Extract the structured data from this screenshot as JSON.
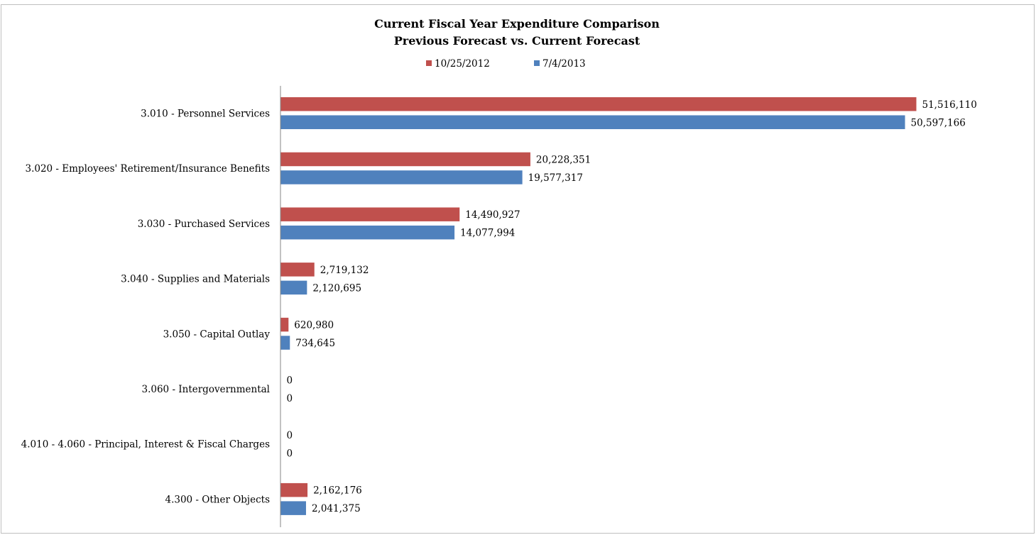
{
  "chart_data": {
    "type": "bar",
    "orientation": "horizontal",
    "title": "Current Fiscal Year Expenditure Comparison",
    "subtitle": "Previous Forecast vs. Current Forecast",
    "legend_position": "top",
    "grid": false,
    "xlim": [
      0,
      55000000
    ],
    "categories": [
      "3.010 - Personnel Services",
      "3.020 - Employees' Retirement/Insurance Benefits",
      "3.030 - Purchased Services",
      "3.040 - Supplies and Materials",
      "3.050 - Capital Outlay",
      "3.060 - Intergovernmental",
      "4.010 - 4.060 - Principal, Interest & Fiscal Charges",
      "4.300 - Other Objects"
    ],
    "series": [
      {
        "name": "10/25/2012",
        "color": "#c0504d",
        "values": [
          51516110,
          20228351,
          14490927,
          2719132,
          620980,
          0,
          0,
          2162176
        ],
        "labels": [
          "51,516,110",
          "20,228,351",
          "14,490,927",
          "2,719,132",
          "620,980",
          "0",
          "0",
          "2,162,176"
        ]
      },
      {
        "name": "7/4/2013",
        "color": "#4f81bd",
        "values": [
          50597166,
          19577317,
          14077994,
          2120695,
          734645,
          0,
          0,
          2041375
        ],
        "labels": [
          "50,597,166",
          "19,577,317",
          "14,077,994",
          "2,120,695",
          "734,645",
          "0",
          "0",
          "2,041,375"
        ]
      }
    ]
  }
}
